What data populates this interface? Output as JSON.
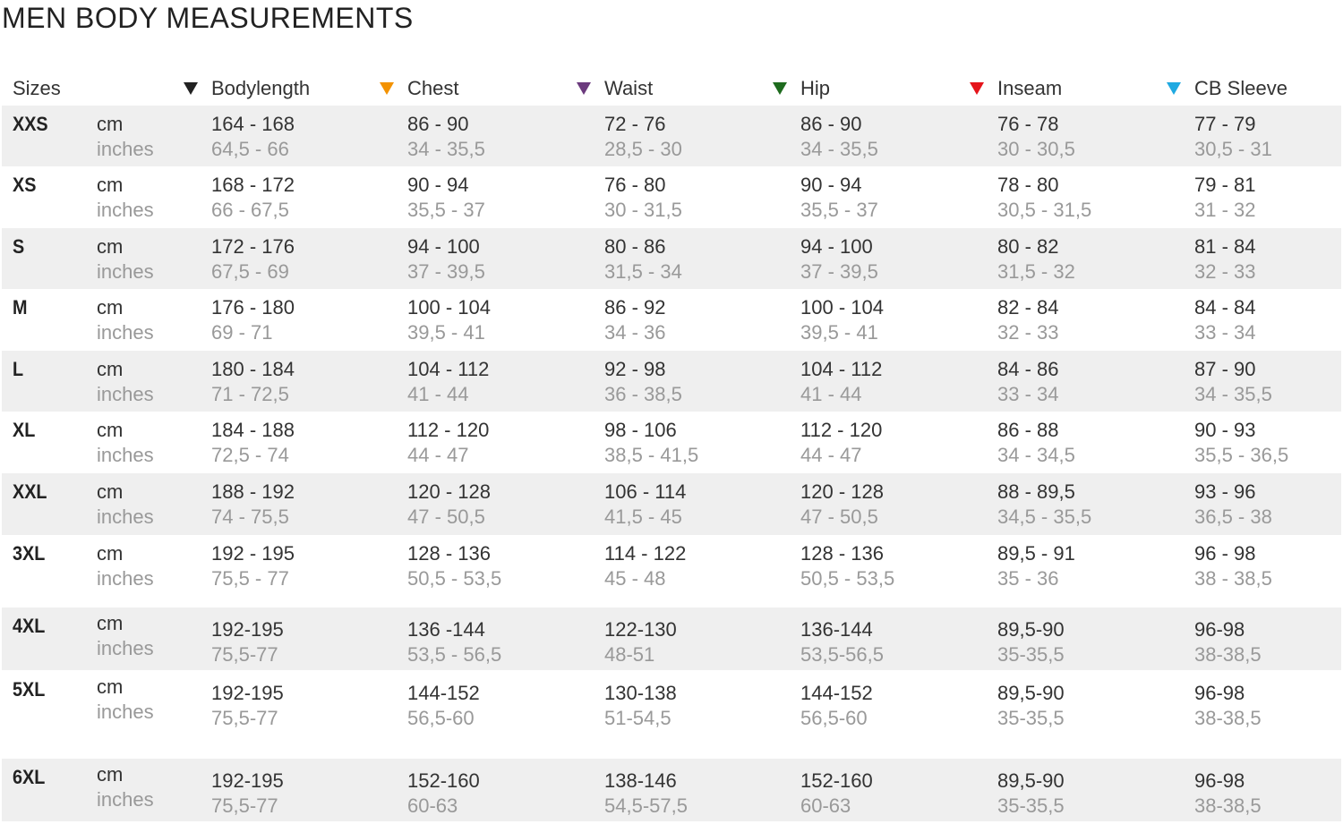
{
  "title": "MEN BODY MEASUREMENTS",
  "headers": {
    "sizes": "Sizes",
    "columns": [
      {
        "label": "Bodylength",
        "color": "#222222"
      },
      {
        "label": "Chest",
        "color": "#f39200"
      },
      {
        "label": "Waist",
        "color": "#6b3a7d"
      },
      {
        "label": "Hip",
        "color": "#1e6b1e"
      },
      {
        "label": "Inseam",
        "color": "#e5141b"
      },
      {
        "label": "CB Sleeve",
        "color": "#1fa9e1"
      }
    ]
  },
  "unit_cm": "cm",
  "unit_in": "inches",
  "rows": [
    {
      "size": "XXS",
      "cm": [
        "164 - 168",
        "86 - 90",
        "72 - 76",
        "86 - 90",
        "76 - 78",
        "77 - 79"
      ],
      "in": [
        "64,5 - 66",
        "34 - 35,5",
        "28,5 - 30",
        "34 - 35,5",
        "30 - 30,5",
        "30,5 - 31"
      ]
    },
    {
      "size": "XS",
      "cm": [
        "168 - 172",
        "90 - 94",
        "76 - 80",
        "90 - 94",
        "78 - 80",
        "79 - 81"
      ],
      "in": [
        "66 - 67,5",
        "35,5 - 37",
        "30 - 31,5",
        "35,5 - 37",
        "30,5 - 31,5",
        "31 - 32"
      ]
    },
    {
      "size": "S",
      "cm": [
        "172 - 176",
        "94 - 100",
        "80 - 86",
        "94 - 100",
        "80 - 82",
        "81 - 84"
      ],
      "in": [
        "67,5 - 69",
        "37 - 39,5",
        "31,5 - 34",
        "37 - 39,5",
        "31,5 - 32",
        "32 - 33"
      ]
    },
    {
      "size": "M",
      "cm": [
        "176 - 180",
        "100 - 104",
        "86 - 92",
        "100 - 104",
        "82 - 84",
        "84 - 84"
      ],
      "in": [
        "69 - 71",
        "39,5 - 41",
        "34 - 36",
        "39,5 - 41",
        "32 - 33",
        "33 - 34"
      ]
    },
    {
      "size": "L",
      "cm": [
        "180 - 184",
        "104 - 112",
        "92 - 98",
        "104 - 112",
        "84 - 86",
        "87 - 90"
      ],
      "in": [
        "71 - 72,5",
        "41 - 44",
        "36 - 38,5",
        "41 - 44",
        "33 - 34",
        "34 - 35,5"
      ]
    },
    {
      "size": "XL",
      "cm": [
        "184 - 188",
        "112 - 120",
        "98 - 106",
        "112 - 120",
        "86 - 88",
        "90 - 93"
      ],
      "in": [
        "72,5 - 74",
        "44 - 47",
        "38,5 - 41,5",
        "44 - 47",
        "34 - 34,5",
        "35,5 - 36,5"
      ]
    },
    {
      "size": "XXL",
      "cm": [
        "188 - 192",
        "120 - 128",
        "106 - 114",
        "120 - 128",
        "88 - 89,5",
        "93 - 96"
      ],
      "in": [
        "74 - 75,5",
        "47 - 50,5",
        "41,5 - 45",
        "47 - 50,5",
        "34,5 - 35,5",
        "36,5 - 38"
      ]
    },
    {
      "size": "3XL",
      "cm": [
        "192 - 195",
        "128 - 136",
        "114 - 122",
        "128 - 136",
        "89,5 - 91",
        "96 - 98"
      ],
      "in": [
        "75,5 - 77",
        "50,5 - 53,5",
        "45 - 48",
        "50,5 - 53,5",
        "35 - 36",
        "38 - 38,5"
      ]
    },
    {
      "size": "4XL",
      "cm": [
        "192-195",
        "136 -144",
        "122-130",
        "136-144",
        "89,5-90",
        "96-98"
      ],
      "in": [
        "75,5-77",
        "53,5 - 56,5",
        "48-51",
        "53,5-56,5",
        "35-35,5",
        "38-38,5"
      ]
    },
    {
      "size": "5XL",
      "cm": [
        "192-195",
        "144-152",
        "130-138",
        "144-152",
        "89,5-90",
        "96-98"
      ],
      "in": [
        "75,5-77",
        "56,5-60",
        "51-54,5",
        "56,5-60",
        "35-35,5",
        "38-38,5"
      ]
    },
    {
      "size": "6XL",
      "cm": [
        "192-195",
        "152-160",
        "138-146",
        "152-160",
        "89,5-90",
        "96-98"
      ],
      "in": [
        "75,5-77",
        "60-63",
        "54,5-57,5",
        "60-63",
        "35-35,5",
        "38-38,5"
      ]
    }
  ]
}
